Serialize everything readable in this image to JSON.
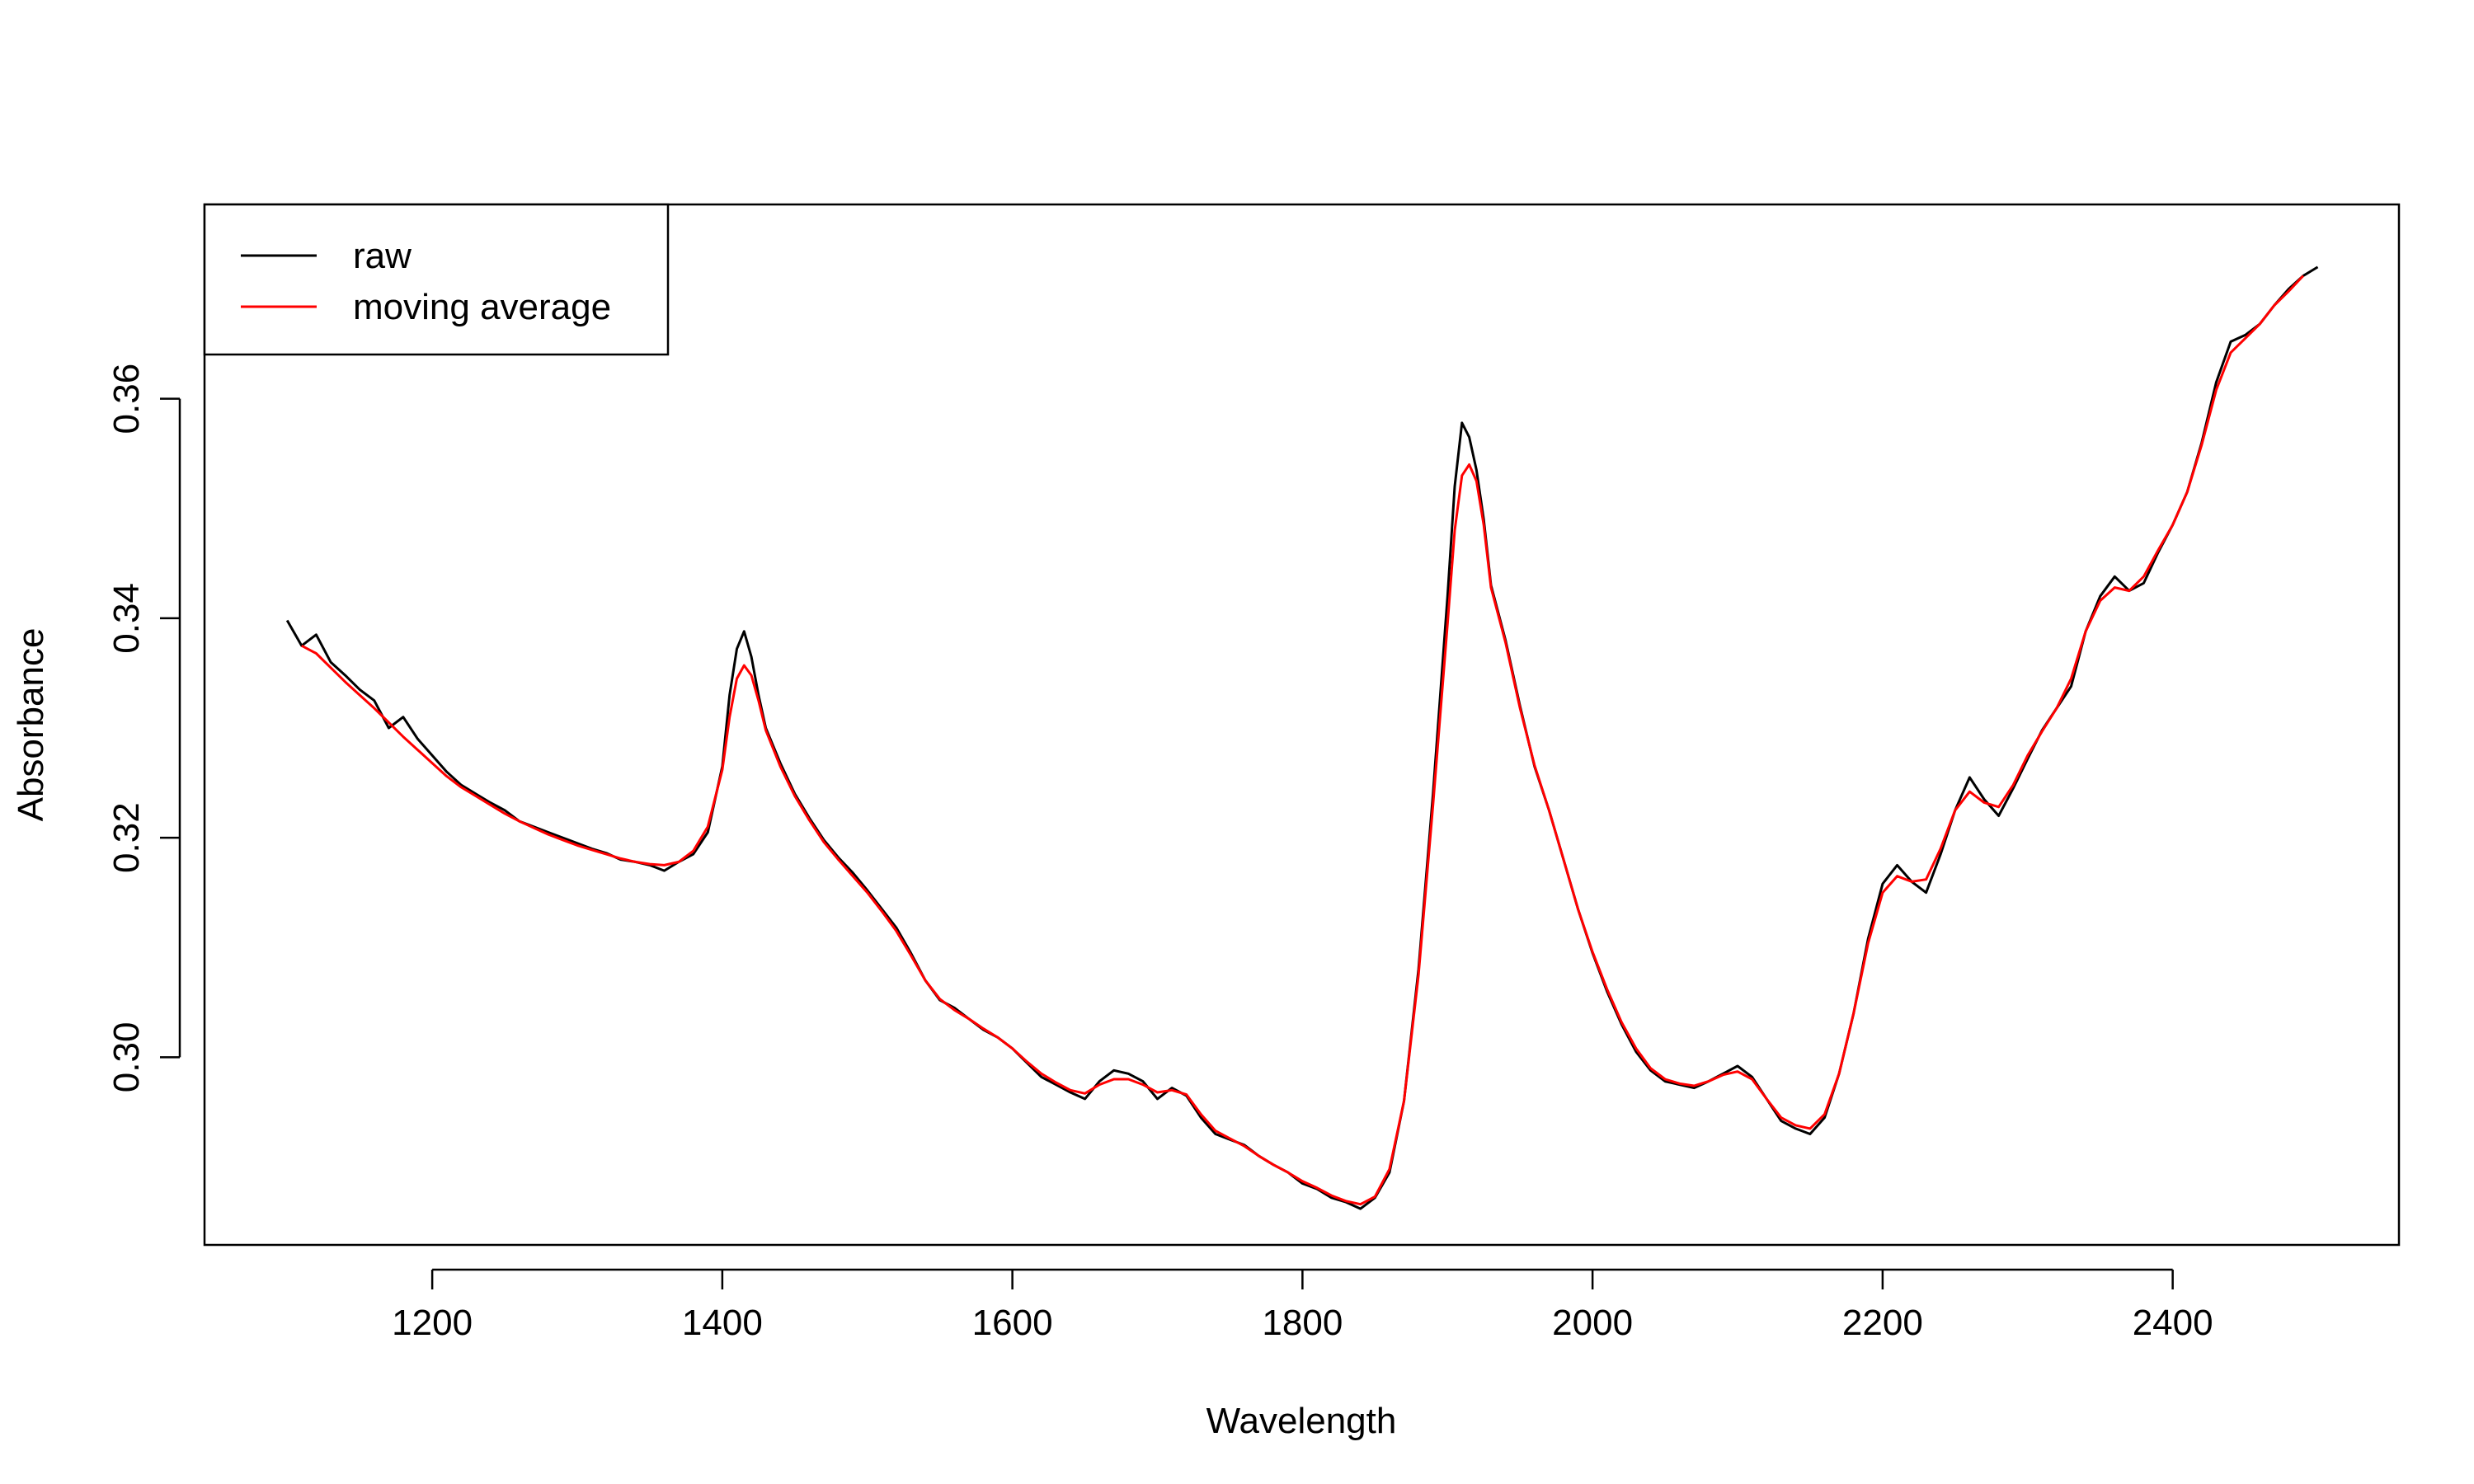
{
  "chart_data": {
    "type": "line",
    "title": "",
    "xlabel": "Wavelength",
    "ylabel": "Absorbance",
    "xlim": [
      1043,
      2556
    ],
    "ylim": [
      0.2829,
      0.3777
    ],
    "x_ticks": [
      1200,
      1400,
      1600,
      1800,
      2000,
      2200,
      2400
    ],
    "y_ticks": [
      0.3,
      0.32,
      0.34,
      0.36
    ],
    "x_tick_labels": [
      "1200",
      "1400",
      "1600",
      "1800",
      "2000",
      "2200",
      "2400"
    ],
    "y_tick_labels": [
      "0.30",
      "0.32",
      "0.34",
      "0.36"
    ],
    "grid": false,
    "legend_position": "top-left",
    "series": [
      {
        "name": "raw",
        "color": "#000000",
        "x": [
          1100,
          1110,
          1120,
          1130,
          1140,
          1150,
          1160,
          1170,
          1180,
          1190,
          1200,
          1210,
          1220,
          1230,
          1240,
          1250,
          1260,
          1270,
          1280,
          1290,
          1300,
          1310,
          1320,
          1330,
          1340,
          1350,
          1360,
          1370,
          1380,
          1390,
          1400,
          1405,
          1410,
          1415,
          1420,
          1425,
          1430,
          1440,
          1450,
          1460,
          1470,
          1480,
          1490,
          1500,
          1510,
          1520,
          1530,
          1540,
          1550,
          1560,
          1570,
          1580,
          1590,
          1600,
          1610,
          1620,
          1630,
          1640,
          1650,
          1660,
          1670,
          1680,
          1690,
          1700,
          1710,
          1720,
          1730,
          1740,
          1750,
          1760,
          1770,
          1780,
          1790,
          1800,
          1810,
          1820,
          1830,
          1840,
          1850,
          1860,
          1870,
          1880,
          1890,
          1900,
          1905,
          1910,
          1915,
          1920,
          1925,
          1930,
          1940,
          1950,
          1960,
          1970,
          1980,
          1990,
          2000,
          2010,
          2020,
          2030,
          2040,
          2050,
          2060,
          2070,
          2080,
          2090,
          2100,
          2110,
          2120,
          2130,
          2140,
          2150,
          2160,
          2170,
          2180,
          2190,
          2200,
          2210,
          2220,
          2230,
          2240,
          2250,
          2260,
          2270,
          2280,
          2290,
          2300,
          2310,
          2320,
          2330,
          2340,
          2350,
          2360,
          2370,
          2380,
          2390,
          2400,
          2410,
          2420,
          2430,
          2440,
          2450,
          2460,
          2470,
          2480,
          2490,
          2500
        ],
        "y": [
          0.3398,
          0.3375,
          0.3385,
          0.336,
          0.3348,
          0.3335,
          0.3325,
          0.33,
          0.331,
          0.329,
          0.3275,
          0.326,
          0.3248,
          0.324,
          0.3232,
          0.3225,
          0.3215,
          0.321,
          0.3205,
          0.32,
          0.3195,
          0.319,
          0.3186,
          0.318,
          0.3178,
          0.3175,
          0.317,
          0.3178,
          0.3185,
          0.3205,
          0.3265,
          0.333,
          0.3372,
          0.3388,
          0.3365,
          0.333,
          0.33,
          0.3268,
          0.324,
          0.3218,
          0.3198,
          0.3182,
          0.3168,
          0.3152,
          0.3135,
          0.3118,
          0.3095,
          0.307,
          0.3052,
          0.3045,
          0.3035,
          0.3025,
          0.3018,
          0.3008,
          0.2995,
          0.2982,
          0.2975,
          0.2968,
          0.2962,
          0.2978,
          0.2988,
          0.2985,
          0.2978,
          0.2962,
          0.2972,
          0.2965,
          0.2945,
          0.293,
          0.2925,
          0.292,
          0.291,
          0.2902,
          0.2895,
          0.2885,
          0.288,
          0.2872,
          0.2868,
          0.2862,
          0.2872,
          0.2895,
          0.296,
          0.308,
          0.324,
          0.342,
          0.352,
          0.3578,
          0.3565,
          0.3535,
          0.349,
          0.343,
          0.338,
          0.332,
          0.3265,
          0.3225,
          0.318,
          0.3135,
          0.3095,
          0.306,
          0.303,
          0.3005,
          0.2988,
          0.2978,
          0.2975,
          0.2972,
          0.2978,
          0.2985,
          0.2992,
          0.2982,
          0.2962,
          0.2942,
          0.2935,
          0.293,
          0.2945,
          0.2985,
          0.304,
          0.3108,
          0.3158,
          0.3175,
          0.316,
          0.315,
          0.3185,
          0.3225,
          0.3255,
          0.3235,
          0.322,
          0.3245,
          0.3272,
          0.3298,
          0.3318,
          0.3338,
          0.3388,
          0.342,
          0.3438,
          0.3425,
          0.3432,
          0.346,
          0.3485,
          0.3515,
          0.356,
          0.3615,
          0.3652,
          0.3658,
          0.3668,
          0.3685,
          0.37,
          0.3712,
          0.372
        ]
      },
      {
        "name": "moving average",
        "color": "#ff0000",
        "x": [
          1110,
          1120,
          1130,
          1140,
          1150,
          1160,
          1170,
          1180,
          1190,
          1200,
          1210,
          1220,
          1230,
          1240,
          1250,
          1260,
          1270,
          1280,
          1290,
          1300,
          1310,
          1320,
          1330,
          1340,
          1350,
          1360,
          1370,
          1380,
          1390,
          1400,
          1405,
          1410,
          1415,
          1420,
          1425,
          1430,
          1440,
          1450,
          1460,
          1470,
          1480,
          1490,
          1500,
          1510,
          1520,
          1530,
          1540,
          1550,
          1560,
          1570,
          1580,
          1590,
          1600,
          1610,
          1620,
          1630,
          1640,
          1650,
          1660,
          1670,
          1680,
          1690,
          1700,
          1710,
          1720,
          1730,
          1740,
          1750,
          1760,
          1770,
          1780,
          1790,
          1800,
          1810,
          1820,
          1830,
          1840,
          1850,
          1860,
          1870,
          1880,
          1890,
          1900,
          1905,
          1910,
          1915,
          1920,
          1925,
          1930,
          1940,
          1950,
          1960,
          1970,
          1980,
          1990,
          2000,
          2010,
          2020,
          2030,
          2040,
          2050,
          2060,
          2070,
          2080,
          2090,
          2100,
          2110,
          2120,
          2130,
          2140,
          2150,
          2160,
          2170,
          2180,
          2190,
          2200,
          2210,
          2220,
          2230,
          2240,
          2250,
          2260,
          2270,
          2280,
          2290,
          2300,
          2310,
          2320,
          2330,
          2340,
          2350,
          2360,
          2370,
          2380,
          2390,
          2400,
          2410,
          2420,
          2430,
          2440,
          2450,
          2460,
          2470,
          2480,
          2490
        ],
        "y": [
          0.3375,
          0.3368,
          0.3355,
          0.3342,
          0.333,
          0.3318,
          0.3305,
          0.3292,
          0.328,
          0.3268,
          0.3256,
          0.3246,
          0.3238,
          0.323,
          0.3222,
          0.3215,
          0.3209,
          0.3203,
          0.3198,
          0.3193,
          0.3189,
          0.3185,
          0.3181,
          0.3178,
          0.3176,
          0.3175,
          0.3178,
          0.3188,
          0.321,
          0.3262,
          0.331,
          0.3345,
          0.3357,
          0.3348,
          0.3325,
          0.3298,
          0.3265,
          0.3238,
          0.3216,
          0.3196,
          0.318,
          0.3165,
          0.315,
          0.3133,
          0.3115,
          0.3093,
          0.307,
          0.3053,
          0.3043,
          0.3035,
          0.3026,
          0.3018,
          0.3008,
          0.2996,
          0.2985,
          0.2977,
          0.297,
          0.2967,
          0.2975,
          0.298,
          0.298,
          0.2975,
          0.2968,
          0.297,
          0.2966,
          0.2948,
          0.2933,
          0.2926,
          0.2919,
          0.291,
          0.2902,
          0.2895,
          0.2887,
          0.2881,
          0.2874,
          0.2869,
          0.2866,
          0.2873,
          0.2898,
          0.296,
          0.3075,
          0.323,
          0.3395,
          0.348,
          0.353,
          0.354,
          0.3525,
          0.3485,
          0.3428,
          0.3378,
          0.3318,
          0.3266,
          0.3225,
          0.318,
          0.3135,
          0.3096,
          0.3062,
          0.3032,
          0.3008,
          0.299,
          0.298,
          0.2976,
          0.2974,
          0.2978,
          0.2984,
          0.2987,
          0.298,
          0.2962,
          0.2945,
          0.2938,
          0.2935,
          0.2948,
          0.2985,
          0.304,
          0.3104,
          0.315,
          0.3165,
          0.316,
          0.3162,
          0.319,
          0.3225,
          0.3242,
          0.3232,
          0.3228,
          0.3248,
          0.3275,
          0.3297,
          0.3318,
          0.3345,
          0.3388,
          0.3416,
          0.3428,
          0.3425,
          0.3438,
          0.3462,
          0.3485,
          0.3515,
          0.3558,
          0.3608,
          0.3642,
          0.3655,
          0.3668,
          0.3685,
          0.3698,
          0.3712
        ]
      }
    ]
  }
}
